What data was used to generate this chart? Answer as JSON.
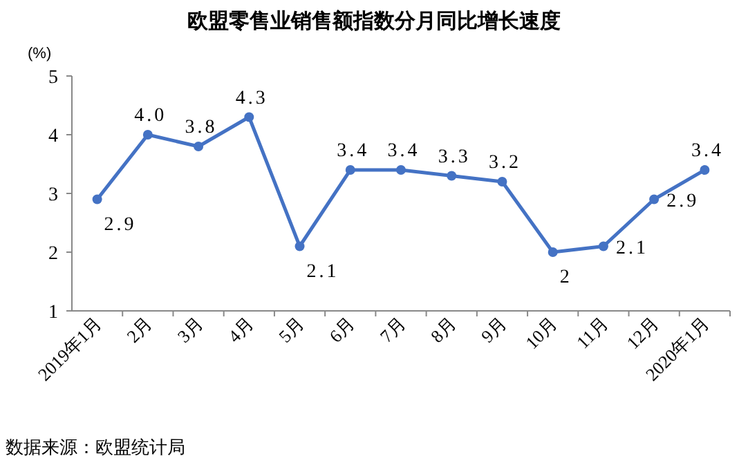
{
  "chart_data": {
    "type": "line",
    "title": "欧盟零售业销售额指数分月同比增长速度",
    "ylabel": "(%)",
    "categories": [
      "2019年1月",
      "2月",
      "3月",
      "4月",
      "5月",
      "6月",
      "7月",
      "8月",
      "9月",
      "10月",
      "11月",
      "12月",
      "2020年1月"
    ],
    "series": [
      {
        "color": "#4472c4",
        "values": [
          2.9,
          4.0,
          3.8,
          4.3,
          2.1,
          3.4,
          3.4,
          3.3,
          3.2,
          2,
          2.1,
          2.9,
          3.4
        ],
        "value_labels": [
          "2.9",
          "4.0",
          "3.8",
          "4.3",
          "2.1",
          "3.4",
          "3.4",
          "3.3",
          "3.2",
          "2",
          "2.1",
          "2.9",
          "3.4"
        ]
      }
    ],
    "ylim": [
      1,
      5
    ],
    "yticks": [
      1,
      2,
      3,
      4,
      5
    ],
    "grid": false,
    "marker": "circle",
    "line_style": "solid",
    "annotations": [
      "数据来源：欧盟统计局"
    ]
  }
}
